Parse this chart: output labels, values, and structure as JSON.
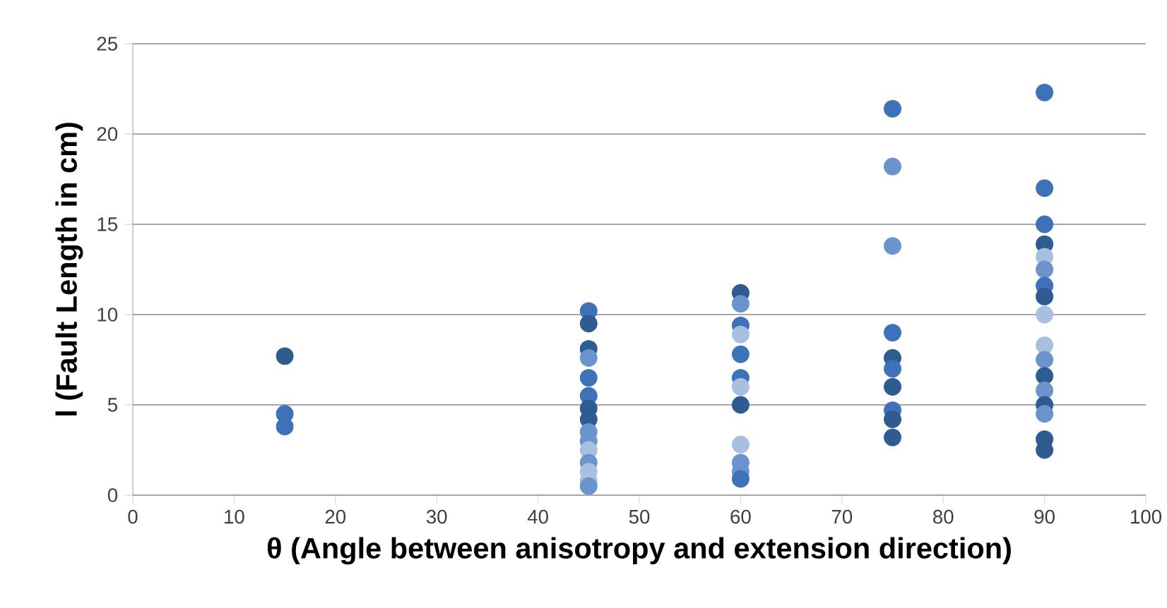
{
  "chart_data": {
    "type": "scatter",
    "xlabel": "θ (Angle between anisotropy and extension direction)",
    "ylabel": "l (Fault Length in cm)",
    "x": [
      15,
      15,
      15,
      45,
      45,
      45,
      45,
      45,
      45,
      45,
      45,
      45,
      45,
      45,
      45,
      45,
      45,
      45,
      60,
      60,
      60,
      60,
      60,
      60,
      60,
      60,
      60,
      60,
      60,
      60,
      75,
      75,
      75,
      75,
      75,
      75,
      75,
      75,
      75,
      75,
      90,
      90,
      90,
      90,
      90,
      90,
      90,
      90,
      90,
      90,
      90,
      90,
      90,
      90,
      90,
      90,
      90
    ],
    "values": [
      7.7,
      4.5,
      3.8,
      10.2,
      9.5,
      8.1,
      7.6,
      6.5,
      5.5,
      4.8,
      4.2,
      3.5,
      3.0,
      2.5,
      1.8,
      1.3,
      0.8,
      0.5,
      11.2,
      10.6,
      9.4,
      8.9,
      7.8,
      6.5,
      6.0,
      5.0,
      2.8,
      1.8,
      1.3,
      0.9,
      21.4,
      18.2,
      13.8,
      9.0,
      7.6,
      7.0,
      6.0,
      4.7,
      4.2,
      3.2,
      22.3,
      17.0,
      15.0,
      13.9,
      13.2,
      12.5,
      11.6,
      11.0,
      10.0,
      8.3,
      7.5,
      6.6,
      5.8,
      5.0,
      4.5,
      3.1,
      2.5
    ],
    "colors": [
      "#2e5c91",
      "#3d72b8",
      "#3d72b8",
      "#3d72b8",
      "#2e5c91",
      "#2e5c91",
      "#6b93cc",
      "#3d72b8",
      "#3d72b8",
      "#2e5c91",
      "#2e5c91",
      "#6b93cc",
      "#6b93cc",
      "#a9bfdf",
      "#6b93cc",
      "#a9bfdf",
      "#a9bfdf",
      "#6b93cc",
      "#2e5c91",
      "#6b93cc",
      "#3d72b8",
      "#a9bfdf",
      "#3d72b8",
      "#3d72b8",
      "#a9bfdf",
      "#2e5c91",
      "#a9bfdf",
      "#6b93cc",
      "#6b93cc",
      "#3d72b8",
      "#3d72b8",
      "#6b93cc",
      "#6b93cc",
      "#3d72b8",
      "#2e5c91",
      "#3d72b8",
      "#2e5c91",
      "#3d72b8",
      "#2e5c91",
      "#2e5c91",
      "#3d72b8",
      "#3d72b8",
      "#3d72b8",
      "#2e5c91",
      "#a9bfdf",
      "#6b93cc",
      "#3d72b8",
      "#2e5c91",
      "#a9bfdf",
      "#a9bfdf",
      "#6b93cc",
      "#2e5c91",
      "#6b93cc",
      "#2e5c91",
      "#6b93cc",
      "#2e5c91",
      "#2e5c91"
    ],
    "xlim": [
      0,
      100
    ],
    "ylim": [
      0,
      25
    ],
    "xticks": [
      0,
      10,
      20,
      30,
      40,
      50,
      60,
      70,
      80,
      90,
      100
    ],
    "yticks": [
      0,
      5,
      10,
      15,
      20,
      25
    ],
    "grid": "y"
  }
}
